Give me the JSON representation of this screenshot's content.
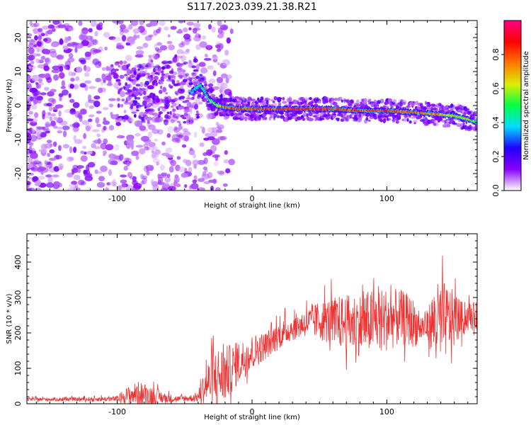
{
  "figure": {
    "title": "S117.2023.039.21.38.R21"
  },
  "chart_data": [
    {
      "type": "heatmap",
      "xlabel": "Height of straight line (km)",
      "ylabel": "Frequency (Hz)",
      "xlim": [
        -167,
        167
      ],
      "ylim": [
        -25,
        25
      ],
      "x_ticks": [
        -100,
        0,
        100
      ],
      "y_ticks": [
        -20,
        -10,
        0,
        10,
        20
      ],
      "colormap": "rainbow (magenta-blue-cyan-green-yellow-red-pink), low values fade to white",
      "grid": false,
      "ridge": {
        "description": "high-amplitude spectral line vs height",
        "x": [
          -45,
          -38,
          -32,
          -26,
          -20,
          -10,
          0,
          20,
          40,
          60,
          80,
          100,
          120,
          135,
          150,
          160,
          167
        ],
        "frequency": [
          4,
          6,
          2,
          0,
          -0.5,
          -1,
          -1,
          -1,
          -1,
          -1,
          -1.5,
          -1.5,
          -2,
          -2.5,
          -3,
          -4,
          -5
        ],
        "amplitude": [
          0.35,
          0.45,
          0.5,
          0.65,
          0.75,
          0.8,
          0.8,
          0.85,
          0.9,
          0.85,
          0.8,
          0.85,
          0.8,
          0.75,
          0.6,
          0.6,
          0.55
        ]
      },
      "noise_region_x": [
        -167,
        -40
      ],
      "colorbar": {
        "label": "Normalized spectral amplitude",
        "range": [
          0,
          1
        ],
        "ticks": [
          0.0,
          0.2,
          0.4,
          0.6,
          0.8
        ],
        "colors": [
          "#ffffff",
          "#8800ff",
          "#2200ff",
          "#00ddff",
          "#00ff44",
          "#ddee00",
          "#ff7700",
          "#ff0000",
          "#ff0088"
        ]
      }
    },
    {
      "type": "line",
      "xlabel": "Height of straight line (km)",
      "ylabel": "SNR (10 * v/v)",
      "xlim": [
        -167,
        167
      ],
      "ylim": [
        0,
        480
      ],
      "x_ticks": [
        -100,
        0,
        100
      ],
      "y_ticks": [
        0,
        100,
        200,
        300,
        400
      ],
      "grid": false,
      "series": [
        {
          "color": "#ee3333",
          "envelope": {
            "x": [
              -167,
              -130,
              -100,
              -95,
              -85,
              -75,
              -65,
              -55,
              -45,
              -40,
              -35,
              -30,
              -25,
              -20,
              -10,
              0,
              10,
              20,
              30,
              40,
              50,
              60,
              70,
              80,
              90,
              100,
              110,
              115,
              120,
              125,
              130,
              135,
              140,
              145,
              150,
              155,
              160,
              167
            ],
            "baseline": [
              12,
              12,
              13,
              20,
              25,
              20,
              15,
              13,
              15,
              18,
              45,
              60,
              65,
              75,
              110,
              140,
              160,
              190,
              210,
              225,
              230,
              225,
              220,
              215,
              225,
              230,
              235,
              230,
              220,
              210,
              215,
              220,
              220,
              225,
              230,
              235,
              240,
              245
            ],
            "amplitude": [
              5,
              5,
              8,
              20,
              35,
              30,
              15,
              8,
              10,
              15,
              50,
              80,
              90,
              80,
              60,
              50,
              40,
              40,
              35,
              40,
              55,
              70,
              80,
              90,
              90,
              90,
              80,
              75,
              70,
              40,
              45,
              100,
              120,
              100,
              80,
              50,
              40,
              40
            ]
          }
        }
      ]
    }
  ]
}
